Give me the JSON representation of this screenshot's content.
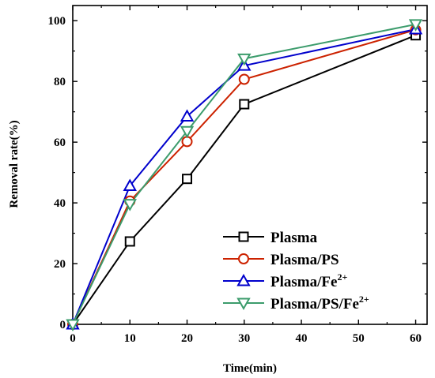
{
  "chart_data": {
    "type": "line",
    "title": "",
    "xlabel": "Time(min)",
    "ylabel": "Removal rate(%)",
    "xlim": [
      0,
      62
    ],
    "ylim": [
      0,
      105
    ],
    "xticks": [
      0,
      10,
      20,
      30,
      40,
      50,
      60
    ],
    "yticks": [
      0,
      20,
      40,
      60,
      80,
      100
    ],
    "grid": false,
    "legend_position": "bottom-right",
    "x": [
      0,
      10,
      20,
      30,
      60
    ],
    "series": [
      {
        "name": "Plasma",
        "name_main": "Plasma",
        "name_sup": "",
        "name_tail": "",
        "color": "#000000",
        "marker": "square",
        "values": [
          0,
          27.3,
          47.9,
          72.5,
          95.2
        ]
      },
      {
        "name": "Plasma/PS",
        "name_main": "Plasma/PS",
        "name_sup": "",
        "name_tail": "",
        "color": "#cc2200",
        "marker": "circle",
        "values": [
          0,
          40.6,
          60.2,
          80.7,
          97.0
        ]
      },
      {
        "name": "Plasma/Fe2+",
        "name_main": "Plasma/Fe",
        "name_sup": "2+",
        "name_tail": "",
        "color": "#0000cc",
        "marker": "triangle-up",
        "values": [
          0,
          45.6,
          68.5,
          85.2,
          97.2
        ]
      },
      {
        "name": "Plasma/PS/Fe2+",
        "name_main": "Plasma/PS/Fe",
        "name_sup": "2+",
        "name_tail": "",
        "color": "#3c9c6c",
        "marker": "triangle-down",
        "values": [
          0,
          39.6,
          63.6,
          87.5,
          98.8
        ]
      }
    ]
  }
}
